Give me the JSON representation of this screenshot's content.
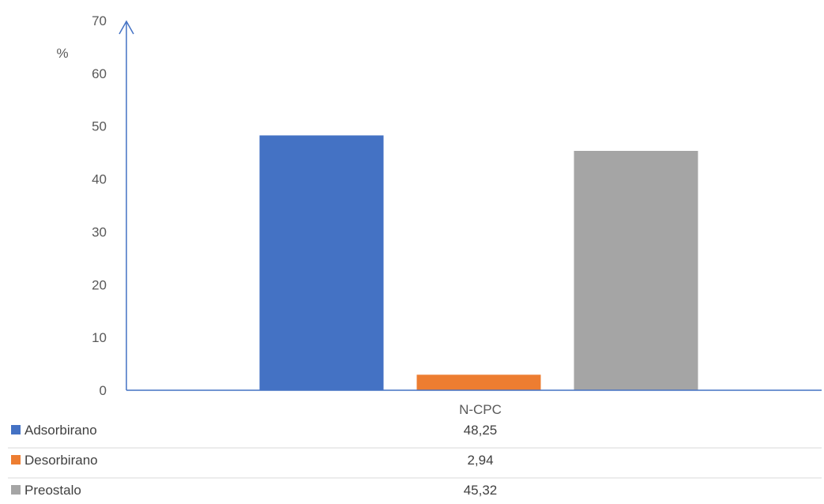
{
  "chart_data": {
    "type": "bar",
    "title": "",
    "ylabel": "%",
    "ylim": [
      0,
      70
    ],
    "yticks": [
      0,
      10,
      20,
      30,
      40,
      50,
      60,
      70
    ],
    "categories": [
      "N-CPC"
    ],
    "series": [
      {
        "name": "Adsorbirano",
        "values": [
          48.25
        ],
        "color": "#4472c4",
        "value_label": "48,25"
      },
      {
        "name": "Desorbirano",
        "values": [
          2.94
        ],
        "color": "#ed7d31",
        "value_label": "2,94"
      },
      {
        "name": "Preostalo",
        "values": [
          45.32
        ],
        "color": "#a5a5a5",
        "value_label": "45,32"
      }
    ],
    "grid": false,
    "legend": "data-table",
    "axis_color": "#4472c4"
  }
}
